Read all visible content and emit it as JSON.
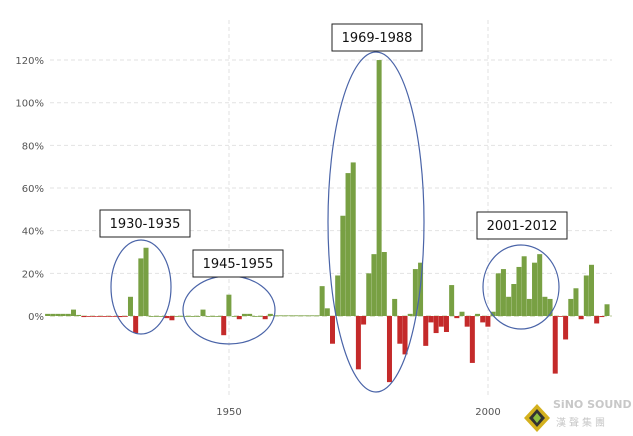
{
  "chart_data": {
    "type": "bar",
    "title": "",
    "xlabel": "",
    "ylabel": "",
    "x_ticks": [
      "1950",
      "2000"
    ],
    "y_ticks": [
      "0%",
      "20%",
      "40%",
      "60%",
      "80%",
      "100%",
      "120%"
    ],
    "ylim": [
      -35,
      125
    ],
    "xlim": [
      1915,
      2023
    ],
    "grid": true,
    "colors": {
      "positive": "#78a043",
      "negative": "#c42a2a",
      "annotation": "#4a64a8"
    },
    "years": [
      1915,
      1916,
      1917,
      1918,
      1919,
      1920,
      1921,
      1922,
      1923,
      1924,
      1925,
      1926,
      1927,
      1928,
      1929,
      1930,
      1931,
      1932,
      1933,
      1934,
      1935,
      1936,
      1937,
      1938,
      1939,
      1940,
      1941,
      1942,
      1943,
      1944,
      1945,
      1946,
      1947,
      1948,
      1949,
      1950,
      1951,
      1952,
      1953,
      1954,
      1955,
      1956,
      1957,
      1958,
      1959,
      1960,
      1961,
      1962,
      1963,
      1964,
      1965,
      1966,
      1967,
      1968,
      1969,
      1970,
      1971,
      1972,
      1973,
      1974,
      1975,
      1976,
      1977,
      1978,
      1979,
      1980,
      1981,
      1982,
      1983,
      1984,
      1985,
      1986,
      1987,
      1988,
      1989,
      1990,
      1991,
      1992,
      1993,
      1994,
      1995,
      1996,
      1997,
      1998,
      1999,
      2000,
      2001,
      2002,
      2003,
      2004,
      2005,
      2006,
      2007,
      2008,
      2009,
      2010,
      2011,
      2012,
      2013,
      2014,
      2015,
      2016,
      2017,
      2018,
      2019,
      2020,
      2021,
      2022,
      2023
    ],
    "values": [
      1,
      1,
      1,
      1,
      1,
      3,
      0.5,
      -0.5,
      -0.2,
      -0.2,
      -0.2,
      -0.2,
      -0.2,
      -0.2,
      -0.5,
      -0.2,
      9,
      -8,
      27,
      32,
      0,
      0,
      0,
      -1,
      -2,
      0,
      0,
      0,
      0,
      0,
      3,
      0,
      0,
      0,
      -9,
      10,
      0,
      -1.5,
      1,
      1,
      0,
      0,
      -1.5,
      1,
      0.3,
      0.3,
      0.3,
      0.3,
      0.3,
      0.3,
      0.3,
      0.3,
      0.3,
      14,
      3.6,
      -13,
      19,
      47,
      67,
      72,
      -25,
      -4,
      20,
      29,
      120,
      30,
      -31,
      8,
      -13,
      -18,
      1,
      22,
      25,
      -14,
      -3,
      -8,
      -5,
      -7.5,
      14.5,
      -1,
      2,
      -5,
      -22,
      1,
      -3,
      -5,
      2,
      20,
      22,
      9,
      15,
      23,
      28,
      8,
      25,
      29,
      9,
      8,
      -27,
      -0.3,
      -11,
      8,
      13,
      -1.5,
      19,
      24,
      -3.5,
      -0.5,
      5.5
    ],
    "annotations": [
      {
        "label": "1930-1935",
        "from": 1930,
        "to": 1935
      },
      {
        "label": "1945-1955",
        "from": 1945,
        "to": 1955
      },
      {
        "label": "1969-1988",
        "from": 1969,
        "to": 1988
      },
      {
        "label": "2001-2012",
        "from": 2001,
        "to": 2012
      }
    ]
  },
  "logo": {
    "text": "SiNO SOUND",
    "subtext": "漢聲集團"
  }
}
